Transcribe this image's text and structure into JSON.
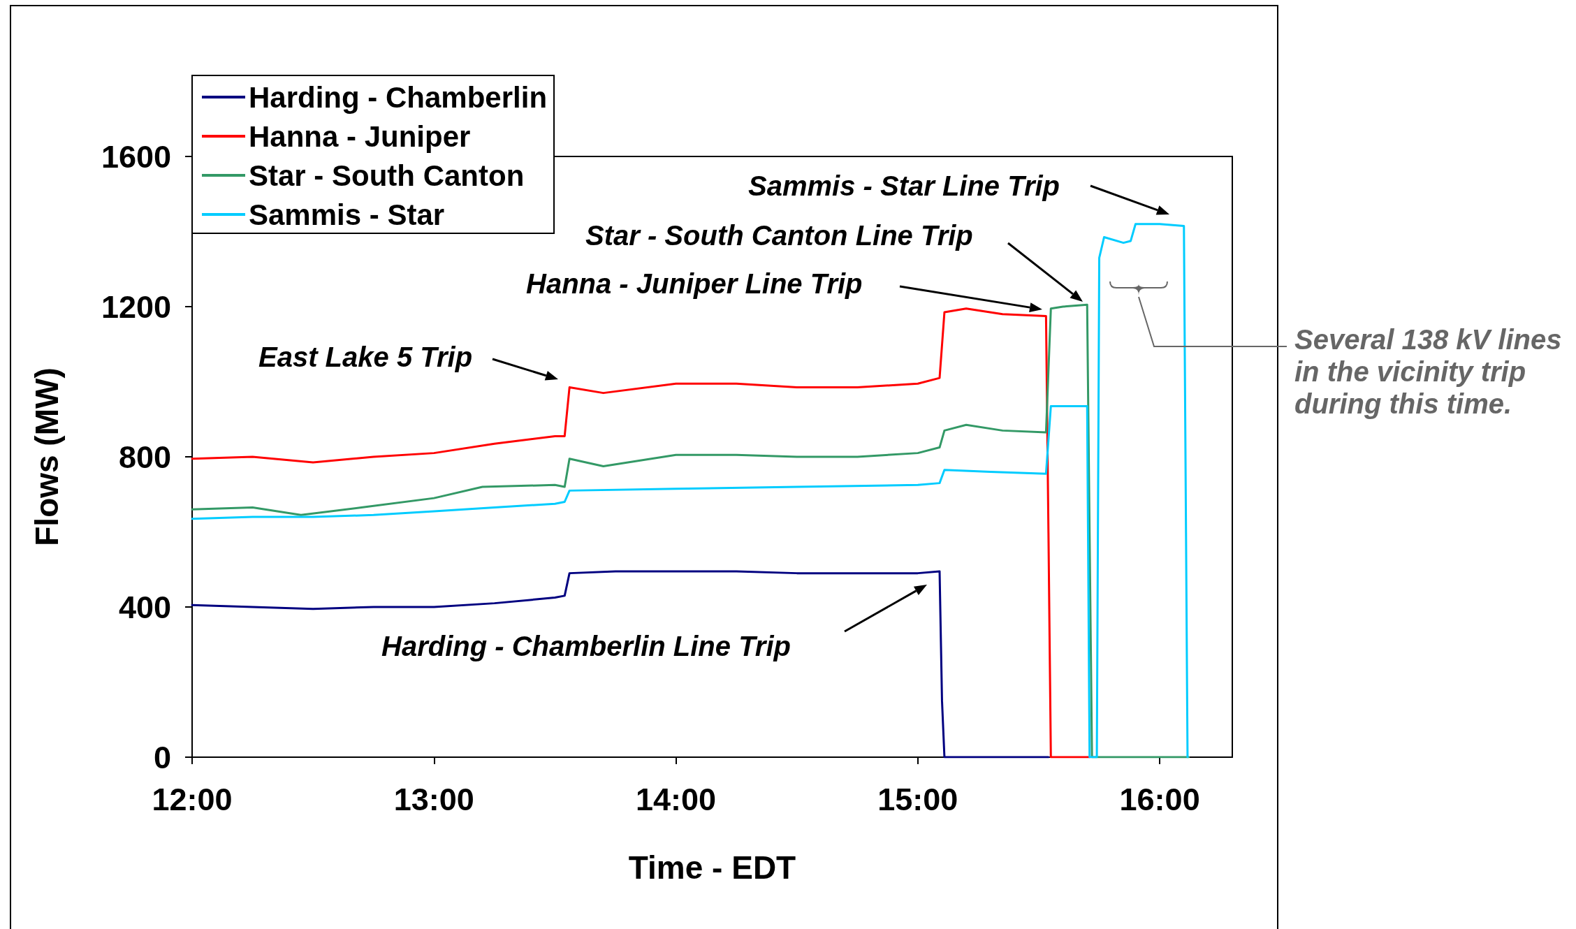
{
  "chart_data": {
    "type": "line",
    "xlabel": "Time - EDT",
    "ylabel": "Flows (MW)",
    "xlim": [
      12,
      16.3
    ],
    "xticks": [
      {
        "value": 12,
        "label": "12:00"
      },
      {
        "value": 13,
        "label": "13:00"
      },
      {
        "value": 14,
        "label": "14:00"
      },
      {
        "value": 15,
        "label": "15:00"
      },
      {
        "value": 16,
        "label": "16:00"
      }
    ],
    "ylim": [
      0,
      1600
    ],
    "yticks": [
      0,
      400,
      800,
      1200,
      1600
    ],
    "legend": "top left",
    "marker": "none",
    "line_style": "solid",
    "grid": false,
    "series": [
      {
        "name": "Harding - Chamberlin",
        "color": "#000080",
        "x": [
          12,
          12.25,
          12.5,
          12.75,
          13,
          13.25,
          13.5,
          13.54,
          13.56,
          13.75,
          14,
          14.25,
          14.5,
          14.75,
          15,
          15.09,
          15.1,
          15.11,
          15.54
        ],
        "values": [
          405,
          400,
          395,
          400,
          400,
          410,
          425,
          430,
          490,
          495,
          495,
          495,
          490,
          490,
          490,
          495,
          150,
          0,
          0
        ]
      },
      {
        "name": "Hanna - Juniper",
        "color": "#ff0000",
        "x": [
          12,
          12.25,
          12.5,
          12.75,
          13,
          13.25,
          13.5,
          13.54,
          13.56,
          13.7,
          14,
          14.25,
          14.5,
          14.75,
          15,
          15.09,
          15.11,
          15.2,
          15.35,
          15.53,
          15.54,
          15.55,
          15.71
        ],
        "values": [
          795,
          800,
          785,
          800,
          810,
          835,
          855,
          855,
          985,
          970,
          995,
          995,
          985,
          985,
          995,
          1010,
          1185,
          1195,
          1180,
          1175,
          600,
          0,
          0
        ]
      },
      {
        "name": "Star - South Canton",
        "color": "#339966",
        "x": [
          12,
          12.25,
          12.45,
          12.7,
          13,
          13.2,
          13.5,
          13.54,
          13.56,
          13.7,
          14,
          14.25,
          14.5,
          14.75,
          15,
          15.09,
          15.11,
          15.2,
          15.35,
          15.53,
          15.55,
          15.6,
          15.7,
          15.71,
          15.72,
          16.12
        ],
        "values": [
          660,
          665,
          645,
          665,
          690,
          720,
          725,
          720,
          795,
          775,
          805,
          805,
          800,
          800,
          810,
          825,
          870,
          885,
          870,
          865,
          1195,
          1200,
          1205,
          600,
          0,
          0
        ]
      },
      {
        "name": "Sammis - Star",
        "color": "#00ccff",
        "x": [
          12,
          12.25,
          12.5,
          12.75,
          13,
          13.25,
          13.5,
          13.54,
          13.56,
          14,
          14.5,
          15,
          15.09,
          15.11,
          15.3,
          15.53,
          15.55,
          15.7,
          15.71,
          15.74,
          15.75,
          15.77,
          15.85,
          15.88,
          15.9,
          16,
          16.1,
          16.115
        ],
        "values": [
          635,
          640,
          640,
          645,
          655,
          665,
          675,
          680,
          710,
          715,
          720,
          725,
          730,
          765,
          760,
          755,
          935,
          935,
          0,
          0,
          1330,
          1385,
          1370,
          1375,
          1420,
          1420,
          1415,
          0
        ]
      }
    ],
    "annotations": [
      "East Lake 5 Trip",
      "Harding - Chamberlin Line Trip",
      "Hanna - Juniper Line Trip",
      "Star - South Canton Line Trip",
      "Sammis - Star Line Trip",
      "Several 138 kV lines\nin the vicinity trip\nduring this time."
    ]
  }
}
